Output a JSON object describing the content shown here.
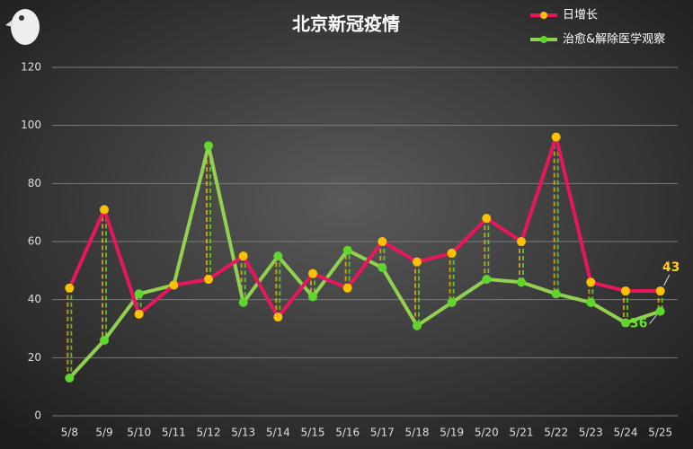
{
  "chart_data": {
    "type": "line",
    "title": "北京新冠疫情",
    "categories": [
      "5/8",
      "5/9",
      "5/10",
      "5/11",
      "5/12",
      "5/13",
      "5/14",
      "5/15",
      "5/16",
      "5/17",
      "5/18",
      "5/19",
      "5/20",
      "5/21",
      "5/22",
      "5/23",
      "5/24",
      "5/25"
    ],
    "series": [
      {
        "name": "日增长",
        "color": "#e8175d",
        "marker_color": "#ffc000",
        "values": [
          44,
          71,
          35,
          45,
          47,
          55,
          34,
          49,
          44,
          60,
          53,
          56,
          68,
          60,
          96,
          46,
          43,
          43
        ]
      },
      {
        "name": "治愈&解除医学观察",
        "color": "#92d050",
        "marker_color": "#5fd62e",
        "values": [
          13,
          26,
          42,
          45,
          93,
          39,
          55,
          41,
          57,
          51,
          31,
          39,
          47,
          46,
          42,
          39,
          32,
          36
        ]
      }
    ],
    "ylim": [
      0,
      120
    ],
    "yticks": [
      0,
      20,
      40,
      60,
      80,
      100,
      120
    ],
    "grid": true
  }
}
